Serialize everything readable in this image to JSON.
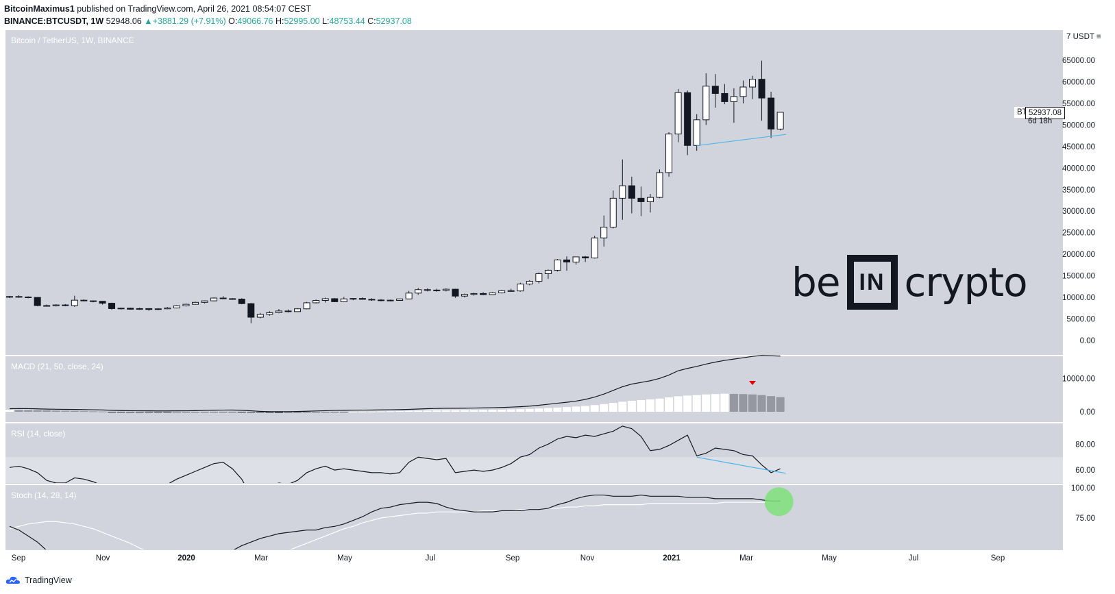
{
  "header": {
    "author": "BitcoinMaximus1",
    "published_text": "published on TradingView.com, April 26, 2021 08:54:07 CEST",
    "symbol": "BINANCE:BTCUSDT, 1W",
    "last": "52948.06",
    "change": "+3881.29 (+7.91%)",
    "open_label": "O:",
    "open": "49066.76",
    "high_label": "H:",
    "high": "52995.00",
    "low_label": "L:",
    "low": "48753.44",
    "close_label": "C:",
    "close": "52937.08"
  },
  "main_pane": {
    "title": "Bitcoin / TetherUS, 1W, BINANCE",
    "currency": "USDT",
    "price_ticks": [
      "65000.00",
      "60000.00",
      "55000.00",
      "50000.00",
      "45000.00",
      "40000.00",
      "35000.00",
      "30000.00",
      "25000.00",
      "20000.00",
      "15000.00",
      "10000.00",
      "5000.00",
      "0.00"
    ],
    "symbol_tag": "BTCUSDT",
    "last_price": "52937.08",
    "countdown": "6d 18h",
    "logo": {
      "left": "be",
      "middle": "IN",
      "right": "crypto"
    }
  },
  "macd_pane": {
    "title": "MACD (21, 50, close, 24)",
    "ticks": [
      "10000.00",
      "0.00"
    ]
  },
  "rsi_pane": {
    "title": "RSI (14, close)",
    "ticks": [
      "80.00",
      "60.00"
    ]
  },
  "stoch_pane": {
    "title": "Stoch (14, 28, 14)",
    "ticks": [
      "100.00",
      "75.00"
    ]
  },
  "time_axis": [
    "Sep",
    "Nov",
    "2020",
    "Mar",
    "May",
    "Jul",
    "Sep",
    "Nov",
    "2021",
    "Mar",
    "May",
    "Jul",
    "Sep"
  ],
  "footer": {
    "brand": "TradingView"
  },
  "colors": {
    "pane_bg": "#d1d4dc",
    "up_candle": "#ffffff",
    "down_candle": "#131722",
    "divergence_line": "#4fb6e8",
    "signal_circle": "#7fe07a",
    "macd_arrow": "#e00000"
  },
  "chart_data": {
    "type": "candlestick",
    "timeframe": "1W",
    "candles": [
      [
        10050,
        10350,
        9850,
        10200
      ],
      [
        10200,
        10500,
        9900,
        10100
      ],
      [
        10100,
        10250,
        9800,
        10000
      ],
      [
        10000,
        10050,
        7950,
        8100
      ],
      [
        8100,
        8350,
        7900,
        8050
      ],
      [
        8050,
        8400,
        7900,
        8250
      ],
      [
        8250,
        8450,
        7950,
        8200
      ],
      [
        8100,
        10400,
        7800,
        9350
      ],
      [
        9350,
        9550,
        9100,
        9200
      ],
      [
        9200,
        9300,
        8850,
        9100
      ],
      [
        9100,
        9150,
        8350,
        8650
      ],
      [
        8650,
        8800,
        7150,
        7400
      ],
      [
        7400,
        7650,
        7200,
        7500
      ],
      [
        7500,
        7600,
        7150,
        7250
      ],
      [
        7250,
        7600,
        7100,
        7400
      ],
      [
        7400,
        7500,
        6900,
        7200
      ],
      [
        7200,
        7500,
        7050,
        7350
      ],
      [
        7350,
        7750,
        7250,
        7550
      ],
      [
        7550,
        8200,
        7450,
        8050
      ],
      [
        8050,
        8550,
        7900,
        8400
      ],
      [
        8400,
        9000,
        8300,
        8850
      ],
      [
        8850,
        9300,
        8600,
        9200
      ],
      [
        9200,
        10000,
        9100,
        9850
      ],
      [
        9850,
        10300,
        9600,
        9700
      ],
      [
        9700,
        9850,
        9450,
        9600
      ],
      [
        9600,
        9800,
        8400,
        8550
      ],
      [
        8550,
        8700,
        4000,
        5400
      ],
      [
        5400,
        6400,
        5150,
        6050
      ],
      [
        6050,
        6800,
        5750,
        6450
      ],
      [
        6450,
        7300,
        6300,
        6850
      ],
      [
        6850,
        7200,
        6500,
        6700
      ],
      [
        6700,
        7500,
        6600,
        7350
      ],
      [
        7350,
        8950,
        7250,
        8750
      ],
      [
        8750,
        9500,
        8600,
        9300
      ],
      [
        9300,
        9950,
        8800,
        9700
      ],
      [
        9700,
        9850,
        8900,
        9000
      ],
      [
        9000,
        10100,
        8950,
        9650
      ],
      [
        9650,
        9800,
        9350,
        9750
      ],
      [
        9750,
        10000,
        9500,
        9550
      ],
      [
        9550,
        9800,
        9200,
        9400
      ],
      [
        9400,
        9600,
        9100,
        9350
      ],
      [
        9350,
        9500,
        9100,
        9300
      ],
      [
        9300,
        9700,
        9250,
        9650
      ],
      [
        9650,
        11500,
        9600,
        11000
      ],
      [
        11000,
        12200,
        10600,
        11800
      ],
      [
        11800,
        12100,
        11400,
        11700
      ],
      [
        11700,
        12000,
        11300,
        11650
      ],
      [
        11650,
        12100,
        11400,
        11900
      ],
      [
        11900,
        12000,
        9900,
        10300
      ],
      [
        10300,
        10900,
        10000,
        10700
      ],
      [
        10700,
        11100,
        10400,
        10900
      ],
      [
        10900,
        11200,
        10550,
        10650
      ],
      [
        10650,
        11200,
        10550,
        11050
      ],
      [
        11050,
        11700,
        10900,
        11550
      ],
      [
        11550,
        12000,
        11300,
        11500
      ],
      [
        11500,
        13400,
        11300,
        13100
      ],
      [
        13100,
        14000,
        12800,
        13750
      ],
      [
        13750,
        15800,
        13250,
        15500
      ],
      [
        15500,
        16500,
        14300,
        16300
      ],
      [
        16300,
        18900,
        16000,
        18700
      ],
      [
        18700,
        19500,
        16200,
        18200
      ],
      [
        18200,
        19450,
        17600,
        19400
      ],
      [
        19400,
        19600,
        18200,
        19150
      ],
      [
        19150,
        24300,
        19000,
        23800
      ],
      [
        23800,
        29000,
        21800,
        26300
      ],
      [
        26300,
        34800,
        26000,
        33000
      ],
      [
        33000,
        42000,
        28000,
        35900
      ],
      [
        35900,
        38000,
        29500,
        33000
      ],
      [
        33000,
        35700,
        28850,
        32200
      ],
      [
        32200,
        34000,
        29700,
        33200
      ],
      [
        33200,
        39700,
        33000,
        38950
      ],
      [
        38950,
        48300,
        38000,
        47900
      ],
      [
        47900,
        58350,
        46000,
        57500
      ],
      [
        57500,
        58000,
        43000,
        45250
      ],
      [
        45250,
        52500,
        44000,
        51200
      ],
      [
        51200,
        62000,
        50000,
        59000
      ],
      [
        59000,
        61800,
        54000,
        57300
      ],
      [
        57300,
        59500,
        54800,
        55400
      ],
      [
        55400,
        58500,
        50500,
        56600
      ],
      [
        56600,
        60300,
        55000,
        58800
      ],
      [
        58800,
        61400,
        56000,
        60600
      ],
      [
        60600,
        64900,
        51000,
        56250
      ],
      [
        56250,
        57700,
        47000,
        49050
      ],
      [
        49050,
        52950,
        48750,
        52937
      ]
    ],
    "price_axis": [
      0,
      65000
    ],
    "price_unit": "USDT",
    "macd": {
      "params": "21, 50, close, 24",
      "line": [
        900,
        960,
        940,
        880,
        800,
        760,
        720,
        700,
        640,
        600,
        540,
        440,
        360,
        320,
        300,
        280,
        260,
        260,
        280,
        300,
        340,
        400,
        460,
        500,
        520,
        440,
        300,
        120,
        40,
        20,
        40,
        80,
        160,
        240,
        320,
        400,
        440,
        480,
        500,
        520,
        560,
        600,
        640,
        720,
        820,
        920,
        1000,
        1050,
        1060,
        1080,
        1120,
        1160,
        1220,
        1280,
        1400,
        1520,
        1700,
        1950,
        2250,
        2550,
        2850,
        3200,
        3700,
        4400,
        5300,
        6400,
        7500,
        8300,
        8800,
        9300,
        10000,
        11000,
        12300,
        13000,
        13600,
        14300,
        14900,
        15400,
        15800,
        16200,
        16600,
        16900,
        16800,
        16700
      ],
      "histogram": [
        600,
        560,
        520,
        480,
        420,
        360,
        300,
        250,
        180,
        120,
        60,
        -20,
        -80,
        -120,
        -150,
        -170,
        -180,
        -180,
        -170,
        -150,
        -120,
        -90,
        -60,
        -40,
        -30,
        -60,
        -120,
        -200,
        -260,
        -300,
        -280,
        -250,
        -200,
        -150,
        -100,
        -60,
        -20,
        0,
        30,
        60,
        100,
        150,
        200,
        260,
        320,
        360,
        420,
        460,
        480,
        500,
        520,
        560,
        600,
        640,
        700,
        760,
        860,
        980,
        1120,
        1260,
        1400,
        1560,
        1760,
        2000,
        2300,
        2650,
        3000,
        3300,
        3500,
        3700,
        3950,
        4300,
        4650,
        4850,
        5000,
        5200,
        5300,
        5400,
        5350,
        5300,
        5200,
        5000,
        4700,
        4400
      ],
      "axis_range": [
        -300,
        15000
      ]
    },
    "rsi": {
      "params": "14, close",
      "series": [
        62,
        63,
        61,
        58,
        52,
        50,
        50,
        54,
        53,
        51,
        48,
        44,
        45,
        44,
        46,
        45,
        46,
        49,
        53,
        56,
        59,
        62,
        65,
        66,
        61,
        53,
        40,
        44,
        48,
        50,
        49,
        52,
        58,
        61,
        63,
        60,
        61,
        60,
        59,
        58,
        58,
        57,
        58,
        66,
        70,
        69,
        68,
        69,
        58,
        59,
        60,
        59,
        60,
        62,
        65,
        70,
        72,
        77,
        80,
        84,
        86,
        85,
        87,
        86,
        88,
        90,
        94,
        92,
        86,
        75,
        76,
        79,
        83,
        87,
        71,
        73,
        77,
        76,
        75,
        72,
        71,
        64,
        58,
        61
      ],
      "axis_range": [
        50,
        95
      ],
      "overbought": 70
    },
    "stoch": {
      "params": "14, 28, 14",
      "k": [
        68,
        65,
        60,
        55,
        48,
        40,
        34,
        30,
        28,
        26,
        25,
        24,
        23,
        22,
        22,
        23,
        24,
        25,
        27,
        30,
        33,
        36,
        40,
        44,
        48,
        52,
        55,
        58,
        60,
        62,
        63,
        64,
        65,
        65,
        67,
        68,
        70,
        73,
        76,
        80,
        83,
        84,
        86,
        87,
        88,
        88,
        87,
        84,
        82,
        81,
        80,
        80,
        80,
        81,
        81,
        81,
        82,
        82,
        83,
        86,
        88,
        91,
        93,
        94,
        94,
        93,
        93,
        93,
        94,
        93,
        93,
        93,
        93,
        92,
        92,
        92,
        91,
        91,
        91,
        91,
        91,
        90,
        89,
        89
      ],
      "d": [
        66,
        68,
        70,
        71,
        72,
        72,
        71,
        70,
        68,
        66,
        63,
        60,
        57,
        54,
        50,
        47,
        44,
        41,
        39,
        37,
        35,
        34,
        33,
        33,
        34,
        35,
        37,
        39,
        42,
        45,
        48,
        51,
        54,
        57,
        60,
        63,
        66,
        68,
        71,
        73,
        75,
        76,
        77,
        78,
        79,
        79,
        80,
        80,
        80,
        80,
        80,
        81,
        81,
        81,
        81,
        82,
        82,
        82,
        83,
        83,
        84,
        84,
        85,
        85,
        86,
        86,
        86,
        86,
        86,
        87,
        87,
        87,
        87,
        87,
        87,
        87,
        87,
        88,
        88,
        88,
        88,
        88,
        88,
        89
      ],
      "axis_range": [
        50,
        100
      ]
    }
  }
}
